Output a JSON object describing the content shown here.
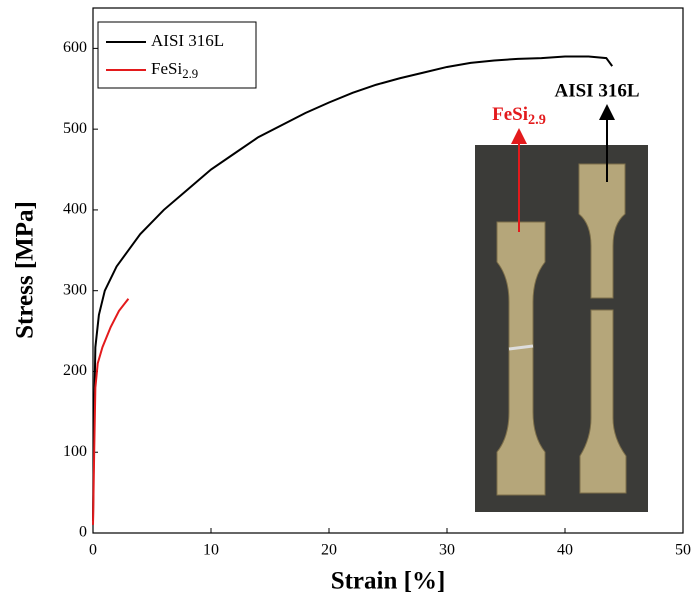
{
  "chart_data": {
    "type": "line",
    "xlabel": "Strain [%]",
    "ylabel": "Stress [MPa]",
    "xlim": [
      0,
      50
    ],
    "ylim": [
      0,
      650
    ],
    "xticks": [
      0,
      10,
      20,
      30,
      40,
      50
    ],
    "yticks": [
      0,
      100,
      200,
      300,
      400,
      500,
      600
    ],
    "legend": "upper left",
    "series": [
      {
        "name": "AISI 316L",
        "color": "#000000",
        "x": [
          0,
          0.1,
          0.2,
          0.5,
          1,
          2,
          3,
          4,
          5,
          6,
          8,
          10,
          12,
          14,
          16,
          18,
          20,
          22,
          24,
          26,
          28,
          30,
          32,
          34,
          36,
          38,
          40,
          42,
          43.5,
          44
        ],
        "values": [
          15,
          150,
          230,
          270,
          300,
          330,
          350,
          370,
          385,
          400,
          425,
          450,
          470,
          490,
          505,
          520,
          533,
          545,
          555,
          563,
          570,
          577,
          582,
          585,
          587,
          588,
          590,
          590,
          588,
          578
        ]
      },
      {
        "name": "FeSi2.9",
        "color": "#e31a1c",
        "x": [
          0,
          0.1,
          0.2,
          0.4,
          0.8,
          1.5,
          2.2,
          3
        ],
        "values": [
          10,
          100,
          180,
          210,
          230,
          255,
          275,
          290
        ]
      }
    ]
  }
}
